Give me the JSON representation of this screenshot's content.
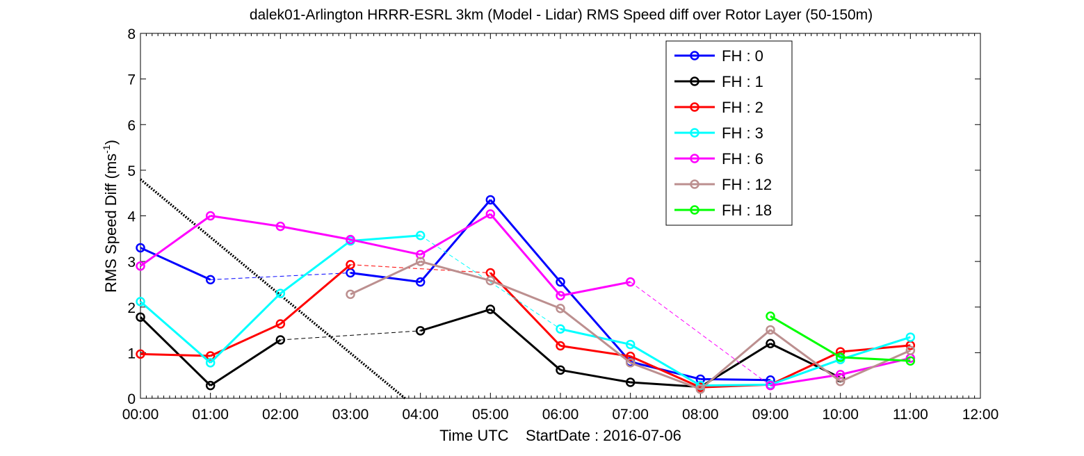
{
  "chart_data": {
    "type": "line",
    "title": "dalek01-Arlington HRRR-ESRL 3km (Model - Lidar) RMS Speed diff over Rotor Layer (50-150m)",
    "xlabel": "Time UTC    StartDate : 2016-07-06",
    "ylabel": "RMS Speed Diff (ms",
    "ylabel_sup": "-1",
    "ylabel_close": ")",
    "xlim": [
      0,
      12
    ],
    "ylim": [
      0,
      8
    ],
    "x_ticks": [
      0,
      1,
      2,
      3,
      4,
      5,
      6,
      7,
      8,
      9,
      10,
      11,
      12
    ],
    "x_tick_labels": [
      "00:00",
      "01:00",
      "02:00",
      "03:00",
      "04:00",
      "05:00",
      "06:00",
      "07:00",
      "08:00",
      "09:00",
      "10:00",
      "11:00",
      "12:00"
    ],
    "y_ticks": [
      0,
      1,
      2,
      3,
      4,
      5,
      6,
      7,
      8
    ],
    "y_tick_labels": [
      "0",
      "1",
      "2",
      "3",
      "4",
      "5",
      "6",
      "7",
      "8"
    ],
    "legend_position": "top-right",
    "series": [
      {
        "name": "FH : 0",
        "color": "#0000ff",
        "points": [
          [
            0,
            3.3
          ],
          [
            1,
            2.6
          ],
          [
            3,
            2.75
          ],
          [
            4,
            2.55
          ],
          [
            5,
            4.35
          ],
          [
            6,
            2.55
          ],
          [
            7,
            0.8
          ],
          [
            8,
            0.42
          ],
          [
            9,
            0.4
          ]
        ]
      },
      {
        "name": "FH : 1",
        "color": "#000000",
        "points": [
          [
            0,
            1.78
          ],
          [
            1,
            0.28
          ],
          [
            2,
            1.28
          ],
          [
            4,
            1.48
          ],
          [
            5,
            1.95
          ],
          [
            6,
            0.62
          ],
          [
            7,
            0.35
          ],
          [
            8,
            0.25
          ],
          [
            9,
            1.2
          ],
          [
            10,
            0.45
          ]
        ]
      },
      {
        "name": "FH : 2",
        "color": "#ff0000",
        "points": [
          [
            0,
            0.97
          ],
          [
            1,
            0.93
          ],
          [
            2,
            1.63
          ],
          [
            3,
            2.93
          ],
          [
            5,
            2.75
          ],
          [
            6,
            1.15
          ],
          [
            7,
            0.92
          ],
          [
            8,
            0.24
          ],
          [
            9,
            0.3
          ],
          [
            10,
            1.02
          ],
          [
            11,
            1.16
          ]
        ]
      },
      {
        "name": "FH : 3",
        "color": "#00ffff",
        "points": [
          [
            0,
            2.12
          ],
          [
            1,
            0.78
          ],
          [
            2,
            2.3
          ],
          [
            3,
            3.45
          ],
          [
            4,
            3.57
          ],
          [
            6,
            1.52
          ],
          [
            7,
            1.18
          ],
          [
            8,
            0.28
          ],
          [
            9,
            0.3
          ],
          [
            10,
            0.85
          ],
          [
            11,
            1.34
          ]
        ]
      },
      {
        "name": "FH : 6",
        "color": "#ff00ff",
        "points": [
          [
            0,
            2.9
          ],
          [
            1,
            4.0
          ],
          [
            2,
            3.77
          ],
          [
            3,
            3.48
          ],
          [
            4,
            3.15
          ],
          [
            5,
            4.04
          ],
          [
            6,
            2.25
          ],
          [
            7,
            2.55
          ],
          [
            9,
            0.28
          ],
          [
            10,
            0.52
          ],
          [
            11,
            0.88
          ]
        ]
      },
      {
        "name": "FH : 12",
        "color": "#bc8f8f",
        "points": [
          [
            3,
            2.28
          ],
          [
            4,
            3.0
          ],
          [
            5,
            2.58
          ],
          [
            6,
            1.97
          ],
          [
            7,
            0.78
          ],
          [
            8,
            0.2
          ],
          [
            9,
            1.5
          ],
          [
            10,
            0.37
          ],
          [
            11,
            1.05
          ]
        ]
      },
      {
        "name": "FH : 18",
        "color": "#00ff00",
        "points": [
          [
            9,
            1.8
          ],
          [
            10,
            0.9
          ],
          [
            11,
            0.82
          ]
        ]
      }
    ],
    "reference_line": {
      "color": "#000000",
      "style": "dotted",
      "points": [
        [
          0,
          4.8
        ],
        [
          3.78,
          0
        ]
      ]
    }
  }
}
